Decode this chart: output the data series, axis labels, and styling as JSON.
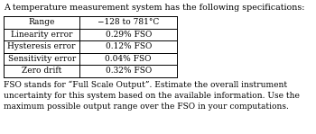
{
  "title": "A temperature measurement system has the following specifications:",
  "table_rows": [
    [
      "Range",
      "−128 to 781°C"
    ],
    [
      "Linearity error",
      "0.29% FSO"
    ],
    [
      "Hysteresis error",
      "0.12% FSO"
    ],
    [
      "Sensitivity error",
      "0.04% FSO"
    ],
    [
      "Zero drift",
      "0.32% FSO"
    ]
  ],
  "footer": "FSO stands for “Full Scale Output”. Estimate the overall instrument\nuncertainty for this system based on the available information. Use the\nmaximum possible output range over the FSO in your computations.",
  "bg_color": "#ffffff",
  "text_color": "#000000",
  "table_line_color": "#000000",
  "title_fontsize": 6.8,
  "table_fontsize": 6.5,
  "footer_fontsize": 6.5,
  "col_split": 0.44
}
